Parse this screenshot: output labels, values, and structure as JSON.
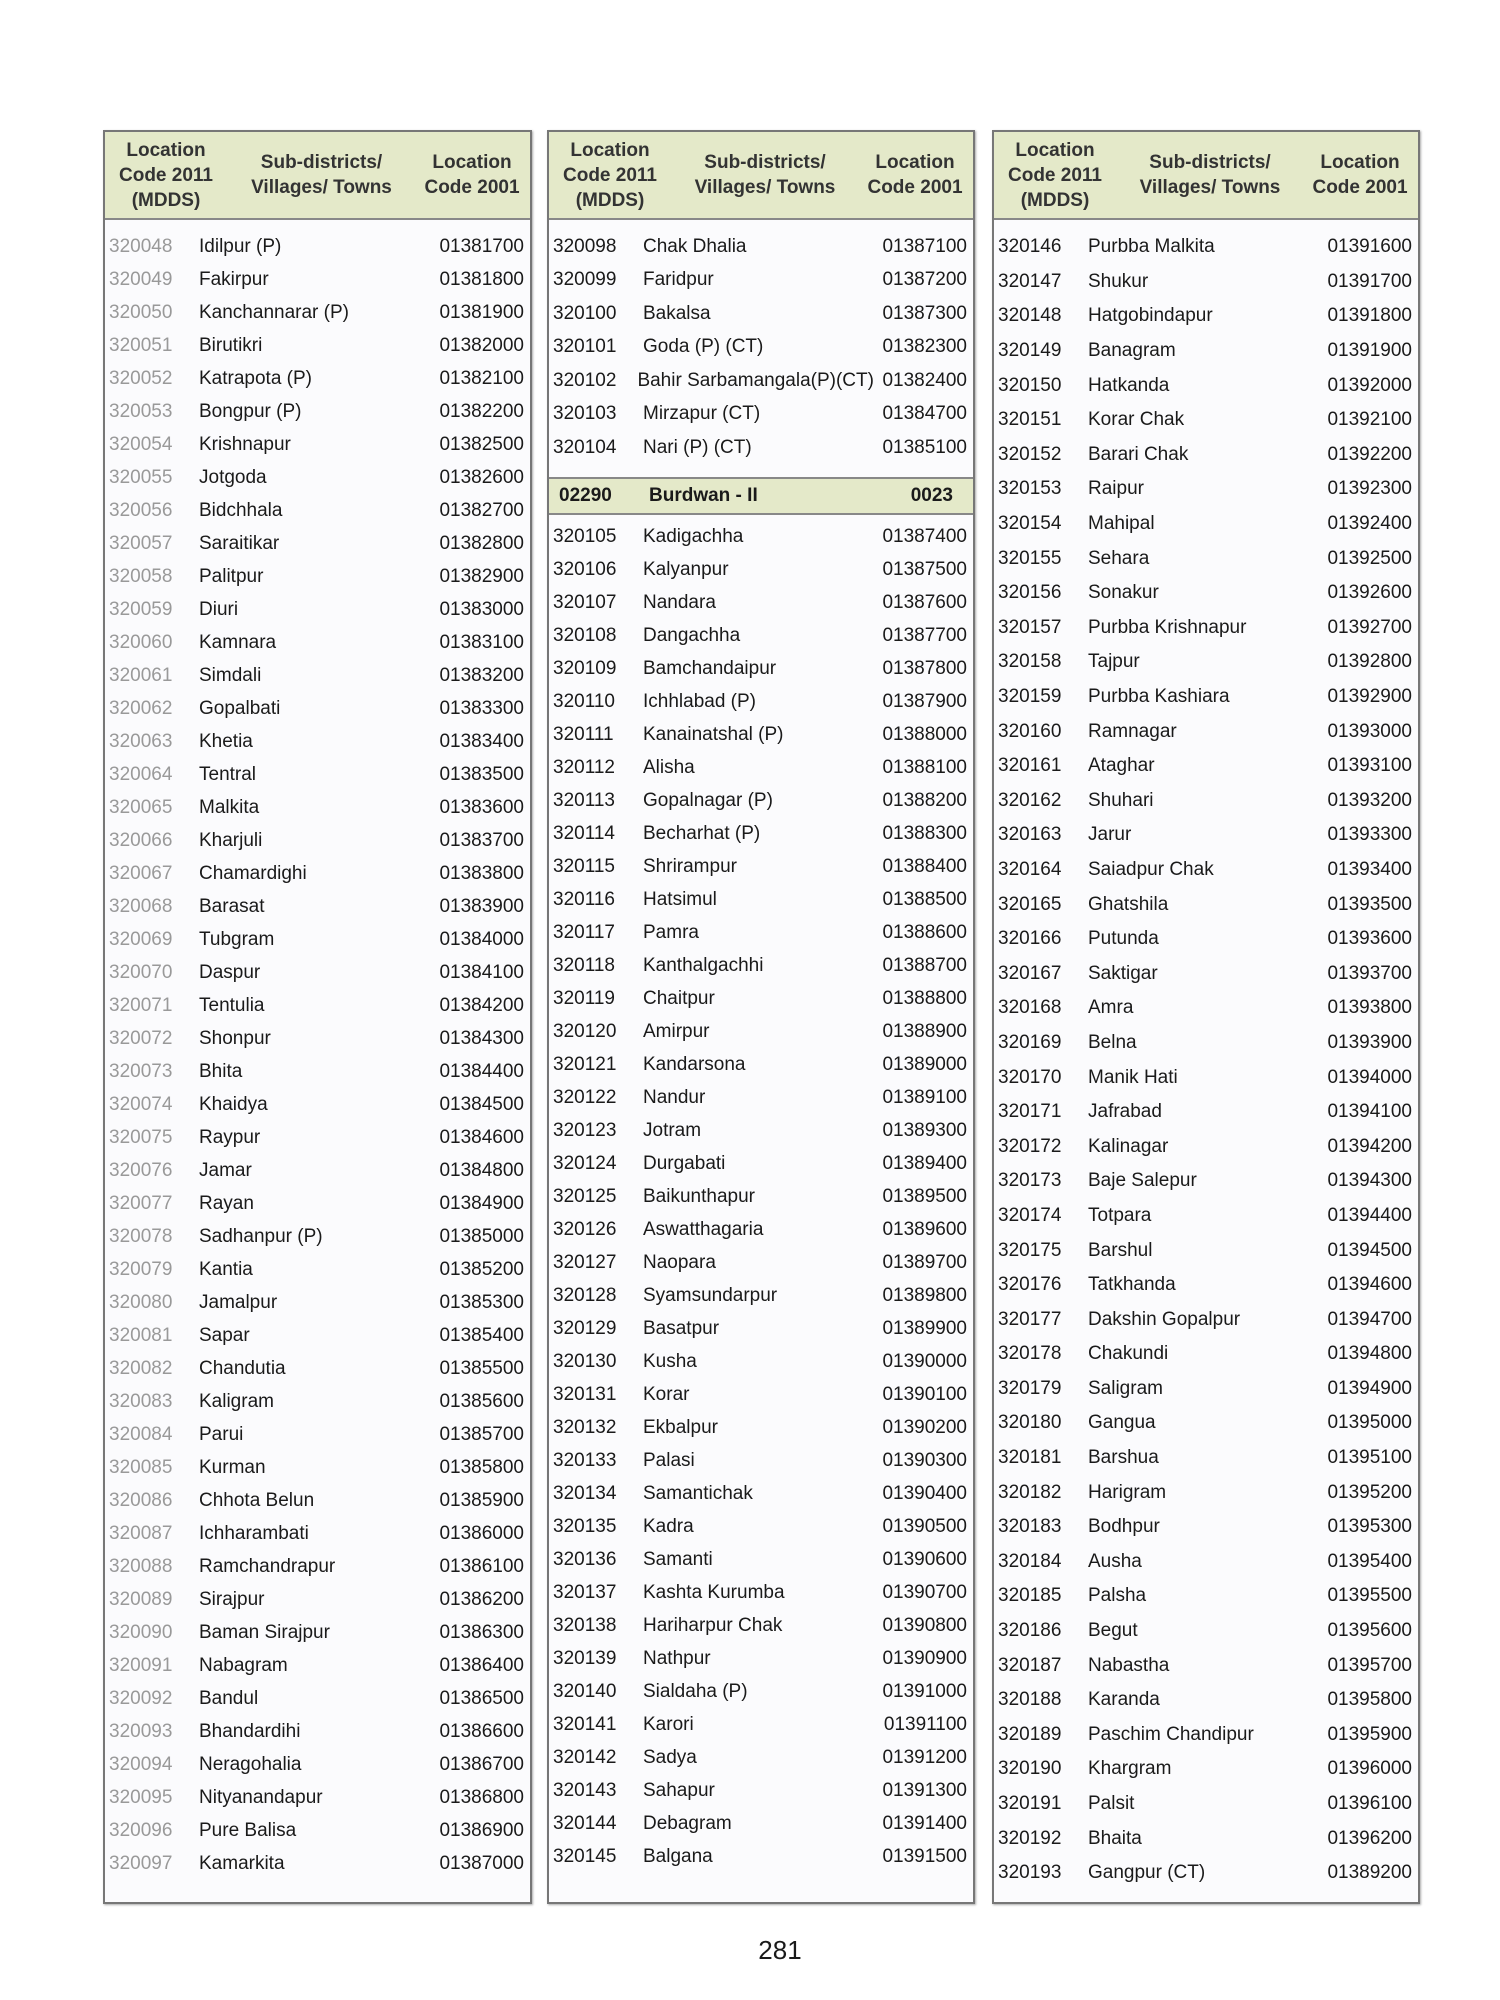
{
  "header": {
    "col1": "Location Code 2011 (MDDS)",
    "col2": "Sub-districts/ Villages/ Towns",
    "col3": "Location Code 2001"
  },
  "columns": [
    {
      "rows": [
        [
          "320048",
          "Idilpur (P)",
          "01381700"
        ],
        [
          "320049",
          "Fakirpur",
          "01381800"
        ],
        [
          "320050",
          "Kanchannarar (P)",
          "01381900"
        ],
        [
          "320051",
          "Birutikri",
          "01382000"
        ],
        [
          "320052",
          "Katrapota (P)",
          "01382100"
        ],
        [
          "320053",
          "Bongpur (P)",
          "01382200"
        ],
        [
          "320054",
          "Krishnapur",
          "01382500"
        ],
        [
          "320055",
          "Jotgoda",
          "01382600"
        ],
        [
          "320056",
          "Bidchhala",
          "01382700"
        ],
        [
          "320057",
          "Saraitikar",
          "01382800"
        ],
        [
          "320058",
          "Palitpur",
          "01382900"
        ],
        [
          "320059",
          "Diuri",
          "01383000"
        ],
        [
          "320060",
          "Kamnara",
          "01383100"
        ],
        [
          "320061",
          "Simdali",
          "01383200"
        ],
        [
          "320062",
          "Gopalbati",
          "01383300"
        ],
        [
          "320063",
          "Khetia",
          "01383400"
        ],
        [
          "320064",
          "Tentral",
          "01383500"
        ],
        [
          "320065",
          "Malkita",
          "01383600"
        ],
        [
          "320066",
          "Kharjuli",
          "01383700"
        ],
        [
          "320067",
          "Chamardighi",
          "01383800"
        ],
        [
          "320068",
          "Barasat",
          "01383900"
        ],
        [
          "320069",
          "Tubgram",
          "01384000"
        ],
        [
          "320070",
          "Daspur",
          "01384100"
        ],
        [
          "320071",
          "Tentulia",
          "01384200"
        ],
        [
          "320072",
          "Shonpur",
          "01384300"
        ],
        [
          "320073",
          "Bhita",
          "01384400"
        ],
        [
          "320074",
          "Khaidya",
          "01384500"
        ],
        [
          "320075",
          "Raypur",
          "01384600"
        ],
        [
          "320076",
          "Jamar",
          "01384800"
        ],
        [
          "320077",
          "Rayan",
          "01384900"
        ],
        [
          "320078",
          "Sadhanpur (P)",
          "01385000"
        ],
        [
          "320079",
          "Kantia",
          "01385200"
        ],
        [
          "320080",
          "Jamalpur",
          "01385300"
        ],
        [
          "320081",
          "Sapar",
          "01385400"
        ],
        [
          "320082",
          "Chandutia",
          "01385500"
        ],
        [
          "320083",
          "Kaligram",
          "01385600"
        ],
        [
          "320084",
          "Parui",
          "01385700"
        ],
        [
          "320085",
          "Kurman",
          "01385800"
        ],
        [
          "320086",
          "Chhota Belun",
          "01385900"
        ],
        [
          "320087",
          "Ichharambati",
          "01386000"
        ],
        [
          "320088",
          "Ramchandrapur",
          "01386100"
        ],
        [
          "320089",
          "Sirajpur",
          "01386200"
        ],
        [
          "320090",
          "Baman Sirajpur",
          "01386300"
        ],
        [
          "320091",
          "Nabagram",
          "01386400"
        ],
        [
          "320092",
          "Bandul",
          "01386500"
        ],
        [
          "320093",
          "Bhandardihi",
          "01386600"
        ],
        [
          "320094",
          "Neragohalia",
          "01386700"
        ],
        [
          "320095",
          "Nityanandapur",
          "01386800"
        ],
        [
          "320096",
          "Pure Balisa",
          "01386900"
        ],
        [
          "320097",
          "Kamarkita",
          "01387000"
        ]
      ]
    },
    {
      "rows": [
        [
          "320098",
          "Chak Dhalia",
          "01387100"
        ],
        [
          "320099",
          "Faridpur",
          "01387200"
        ],
        [
          "320100",
          "Bakalsa",
          "01387300"
        ],
        [
          "320101",
          "Goda (P) (CT)",
          "01382300"
        ],
        [
          "320102",
          "Bahir Sarbamangala(P)(CT)",
          "01382400"
        ],
        [
          "320103",
          "Mirzapur (CT)",
          "01384700"
        ],
        [
          "320104",
          "Nari (P) (CT)",
          "01385100"
        ]
      ],
      "subdistrict": {
        "code2011": "02290",
        "name": "Burdwan - II",
        "code2001": "0023"
      },
      "rows2": [
        [
          "320105",
          "Kadigachha",
          "01387400"
        ],
        [
          "320106",
          "Kalyanpur",
          "01387500"
        ],
        [
          "320107",
          "Nandara",
          "01387600"
        ],
        [
          "320108",
          "Dangachha",
          "01387700"
        ],
        [
          "320109",
          "Bamchandaipur",
          "01387800"
        ],
        [
          "320110",
          "Ichhlabad (P)",
          "01387900"
        ],
        [
          "320111",
          "Kanainatshal (P)",
          "01388000"
        ],
        [
          "320112",
          "Alisha",
          "01388100"
        ],
        [
          "320113",
          "Gopalnagar (P)",
          "01388200"
        ],
        [
          "320114",
          "Becharhat (P)",
          "01388300"
        ],
        [
          "320115",
          "Shrirampur",
          "01388400"
        ],
        [
          "320116",
          "Hatsimul",
          "01388500"
        ],
        [
          "320117",
          "Pamra",
          "01388600"
        ],
        [
          "320118",
          "Kanthalgachhi",
          "01388700"
        ],
        [
          "320119",
          "Chaitpur",
          "01388800"
        ],
        [
          "320120",
          "Amirpur",
          "01388900"
        ],
        [
          "320121",
          "Kandarsona",
          "01389000"
        ],
        [
          "320122",
          "Nandur",
          "01389100"
        ],
        [
          "320123",
          "Jotram",
          "01389300"
        ],
        [
          "320124",
          "Durgabati",
          "01389400"
        ],
        [
          "320125",
          "Baikunthapur",
          "01389500"
        ],
        [
          "320126",
          "Aswatthagaria",
          "01389600"
        ],
        [
          "320127",
          "Naopara",
          "01389700"
        ],
        [
          "320128",
          "Syamsundarpur",
          "01389800"
        ],
        [
          "320129",
          "Basatpur",
          "01389900"
        ],
        [
          "320130",
          "Kusha",
          "01390000"
        ],
        [
          "320131",
          "Korar",
          "01390100"
        ],
        [
          "320132",
          "Ekbalpur",
          "01390200"
        ],
        [
          "320133",
          "Palasi",
          "01390300"
        ],
        [
          "320134",
          "Samantichak",
          "01390400"
        ],
        [
          "320135",
          "Kadra",
          "01390500"
        ],
        [
          "320136",
          "Samanti",
          "01390600"
        ],
        [
          "320137",
          "Kashta Kurumba",
          "01390700"
        ],
        [
          "320138",
          "Hariharpur Chak",
          "01390800"
        ],
        [
          "320139",
          "Nathpur",
          "01390900"
        ],
        [
          "320140",
          "Sialdaha (P)",
          "01391000"
        ],
        [
          "320141",
          "Karori",
          "01391100"
        ],
        [
          "320142",
          "Sadya",
          "01391200"
        ],
        [
          "320143",
          "Sahapur",
          "01391300"
        ],
        [
          "320144",
          "Debagram",
          "01391400"
        ],
        [
          "320145",
          "Balgana",
          "01391500"
        ]
      ]
    },
    {
      "rows": [
        [
          "320146",
          "Purbba Malkita",
          "01391600"
        ],
        [
          "320147",
          "Shukur",
          "01391700"
        ],
        [
          "320148",
          "Hatgobindapur",
          "01391800"
        ],
        [
          "320149",
          "Banagram",
          "01391900"
        ],
        [
          "320150",
          "Hatkanda",
          "01392000"
        ],
        [
          "320151",
          "Korar Chak",
          "01392100"
        ],
        [
          "320152",
          "Barari Chak",
          "01392200"
        ],
        [
          "320153",
          "Raipur",
          "01392300"
        ],
        [
          "320154",
          "Mahipal",
          "01392400"
        ],
        [
          "320155",
          "Sehara",
          "01392500"
        ],
        [
          "320156",
          "Sonakur",
          "01392600"
        ],
        [
          "320157",
          "Purbba Krishnapur",
          "01392700"
        ],
        [
          "320158",
          "Tajpur",
          "01392800"
        ],
        [
          "320159",
          "Purbba Kashiara",
          "01392900"
        ],
        [
          "320160",
          "Ramnagar",
          "01393000"
        ],
        [
          "320161",
          "Ataghar",
          "01393100"
        ],
        [
          "320162",
          "Shuhari",
          "01393200"
        ],
        [
          "320163",
          "Jarur",
          "01393300"
        ],
        [
          "320164",
          "Saiadpur Chak",
          "01393400"
        ],
        [
          "320165",
          "Ghatshila",
          "01393500"
        ],
        [
          "320166",
          "Putunda",
          "01393600"
        ],
        [
          "320167",
          "Saktigar",
          "01393700"
        ],
        [
          "320168",
          "Amra",
          "01393800"
        ],
        [
          "320169",
          "Belna",
          "01393900"
        ],
        [
          "320170",
          "Manik Hati",
          "01394000"
        ],
        [
          "320171",
          "Jafrabad",
          "01394100"
        ],
        [
          "320172",
          "Kalinagar",
          "01394200"
        ],
        [
          "320173",
          "Baje Salepur",
          "01394300"
        ],
        [
          "320174",
          "Totpara",
          "01394400"
        ],
        [
          "320175",
          "Barshul",
          "01394500"
        ],
        [
          "320176",
          "Tatkhanda",
          "01394600"
        ],
        [
          "320177",
          "Dakshin Gopalpur",
          "01394700"
        ],
        [
          "320178",
          "Chakundi",
          "01394800"
        ],
        [
          "320179",
          "Saligram",
          "01394900"
        ],
        [
          "320180",
          "Gangua",
          "01395000"
        ],
        [
          "320181",
          "Barshua",
          "01395100"
        ],
        [
          "320182",
          "Harigram",
          "01395200"
        ],
        [
          "320183",
          "Bodhpur",
          "01395300"
        ],
        [
          "320184",
          "Ausha",
          "01395400"
        ],
        [
          "320185",
          "Palsha",
          "01395500"
        ],
        [
          "320186",
          "Begut",
          "01395600"
        ],
        [
          "320187",
          "Nabastha",
          "01395700"
        ],
        [
          "320188",
          "Karanda",
          "01395800"
        ],
        [
          "320189",
          "Paschim Chandipur",
          "01395900"
        ],
        [
          "320190",
          "Khargram",
          "01396000"
        ],
        [
          "320191",
          "Palsit",
          "01396100"
        ],
        [
          "320192",
          "Bhaita",
          "01396200"
        ],
        [
          "320193",
          "Gangpur (CT)",
          "01389200"
        ]
      ]
    }
  ],
  "page_number": "281"
}
